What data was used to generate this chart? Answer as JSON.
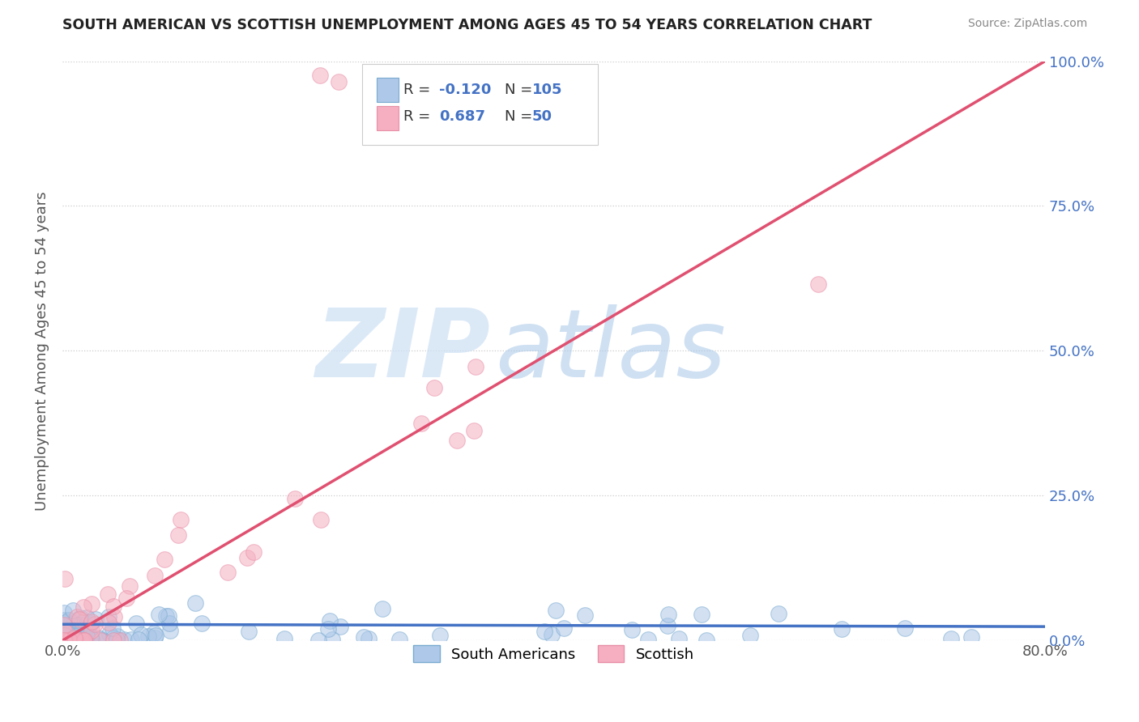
{
  "title": "SOUTH AMERICAN VS SCOTTISH UNEMPLOYMENT AMONG AGES 45 TO 54 YEARS CORRELATION CHART",
  "source": "Source: ZipAtlas.com",
  "ylabel": "Unemployment Among Ages 45 to 54 years",
  "blue_R": -0.12,
  "blue_N": 105,
  "pink_R": 0.687,
  "pink_N": 50,
  "blue_color": "#adc8e8",
  "pink_color": "#f5afc0",
  "blue_edge_color": "#7aaad0",
  "pink_edge_color": "#e890a8",
  "blue_line_color": "#4472c4",
  "pink_line_color": "#e05070",
  "legend_blue_label": "South Americans",
  "legend_pink_label": "Scottish",
  "watermark_zip": "ZIP",
  "watermark_atlas": "atlas",
  "xlim": [
    0.0,
    0.8
  ],
  "ylim": [
    0.0,
    1.0
  ],
  "ytick_vals": [
    0.0,
    0.25,
    0.5,
    0.75,
    1.0
  ],
  "ytick_labels": [
    "0.0%",
    "25.0%",
    "50.0%",
    "75.0%",
    "100.0%"
  ],
  "xtick_vals": [
    0.0,
    0.8
  ],
  "xtick_labels": [
    "0.0%",
    "80.0%"
  ],
  "blue_line_slope": -0.005,
  "blue_line_intercept": 0.028,
  "pink_line_slope": 1.25,
  "pink_line_intercept": 0.0,
  "title_color": "#222222",
  "source_color": "#888888",
  "ylabel_color": "#555555",
  "right_tick_color": "#4472c4",
  "grid_color": "#cccccc",
  "marker_size": 200,
  "marker_alpha": 0.55,
  "marker_linewidth": 0.8
}
